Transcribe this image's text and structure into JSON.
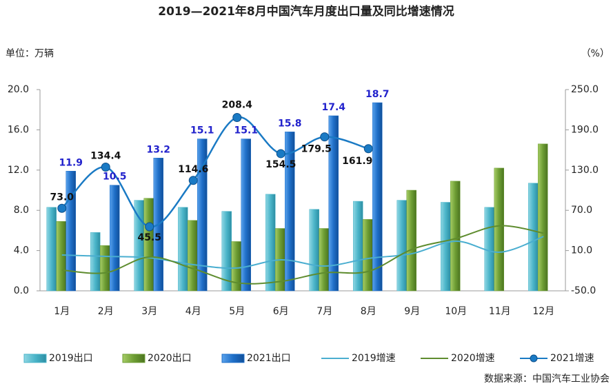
{
  "chart_data": {
    "type": "bar",
    "title": "2019—2021年8月中国汽车月度出口量及同比增速情况",
    "y_label": "单位：万辆",
    "y2_label": "（%）",
    "source": "数据来源：中国汽车工业协会",
    "categories": [
      "1月",
      "2月",
      "3月",
      "4月",
      "5月",
      "6月",
      "7月",
      "8月",
      "9月",
      "10月",
      "11月",
      "12月"
    ],
    "ylim": [
      0,
      20
    ],
    "yticks": [
      {
        "value": 0,
        "label": "0.0"
      },
      {
        "value": 4,
        "label": "4.0"
      },
      {
        "value": 8,
        "label": "8.0"
      },
      {
        "value": 12,
        "label": "12.0"
      },
      {
        "value": 16,
        "label": "16.0"
      },
      {
        "value": 20,
        "label": "20.0"
      }
    ],
    "y2lim": [
      -50,
      250
    ],
    "y2ticks": [
      {
        "value": -50,
        "label": "-50.0"
      },
      {
        "value": 10,
        "label": "10.0"
      },
      {
        "value": 70,
        "label": "70.0"
      },
      {
        "value": 130,
        "label": "130.0"
      },
      {
        "value": 190,
        "label": "190.0"
      },
      {
        "value": 250,
        "label": "250.0"
      }
    ],
    "series": [
      {
        "name": "2019出口",
        "type": "bar",
        "color": "#4bb5c9",
        "values": [
          8.3,
          5.8,
          9.0,
          8.3,
          7.9,
          9.6,
          8.1,
          8.9,
          9.0,
          8.8,
          8.3,
          10.7
        ]
      },
      {
        "name": "2020出口",
        "type": "bar",
        "color": "#6e9e34",
        "values": [
          6.9,
          4.5,
          9.2,
          7.0,
          4.9,
          6.2,
          6.2,
          7.1,
          10.0,
          10.9,
          12.2,
          14.6
        ]
      },
      {
        "name": "2021出口",
        "type": "bar",
        "color": "#1f6fc8",
        "values": [
          11.9,
          10.5,
          13.2,
          15.1,
          15.1,
          15.8,
          17.4,
          18.7,
          null,
          null,
          null,
          null
        ],
        "labels": true
      },
      {
        "name": "2019增速",
        "type": "line",
        "axis": "y2",
        "color": "#4aaed0",
        "values": [
          3.4,
          1.4,
          -0.7,
          -11,
          -16,
          -3.8,
          -13,
          -1.7,
          5.5,
          24,
          7.6,
          31
        ]
      },
      {
        "name": "2020增速",
        "type": "line",
        "axis": "y2",
        "color": "#5e8c2e",
        "values": [
          -19,
          -23,
          0.4,
          -17,
          -38,
          -36,
          -23,
          -21,
          12,
          28,
          47,
          36
        ]
      },
      {
        "name": "2021增速",
        "type": "line",
        "axis": "y2",
        "color": "#1a7ac4",
        "markers": true,
        "values": [
          73.0,
          134.4,
          45.5,
          114.6,
          208.4,
          154.5,
          179.5,
          161.9,
          null,
          null,
          null,
          null
        ],
        "value_labels": [
          "73.0",
          "134.4",
          "45.5",
          "114.6",
          "208.4",
          "154.5",
          "179.5",
          "161.9",
          null,
          null,
          null,
          null
        ]
      }
    ]
  }
}
